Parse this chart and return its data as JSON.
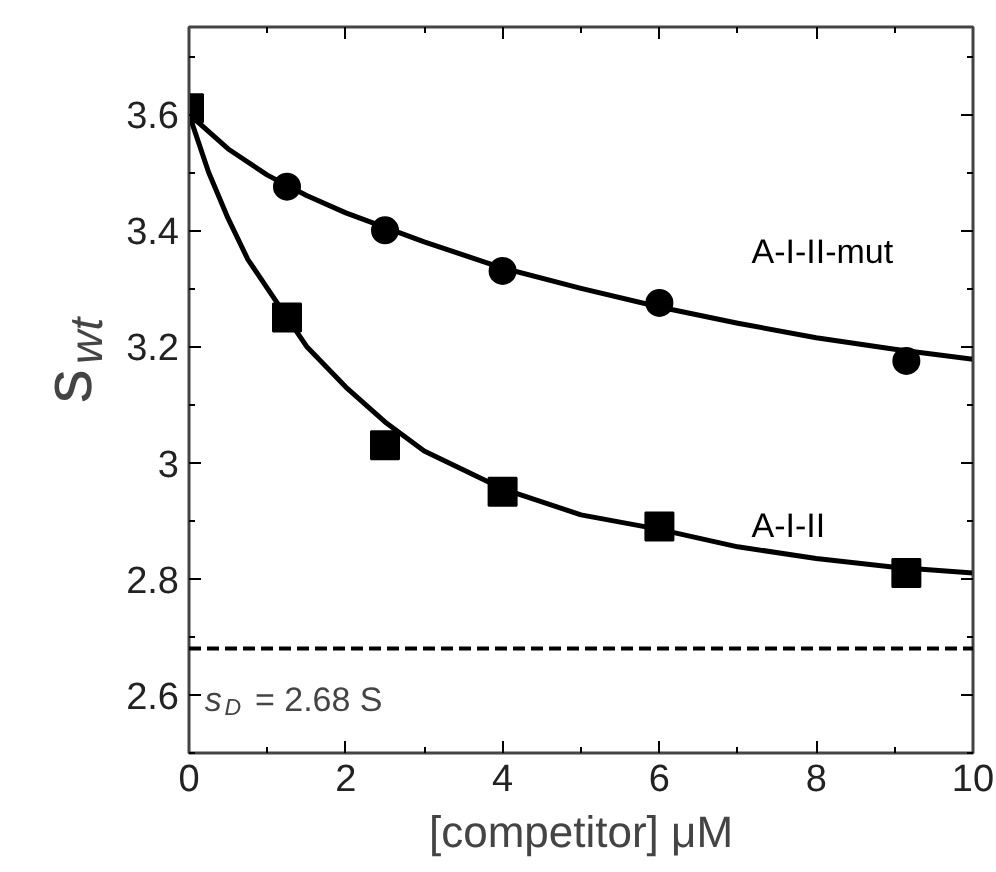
{
  "chart_data": {
    "type": "scatter",
    "xlabel": "[competitor] μM",
    "ylabel": "s$_{wt}$",
    "xlim": [
      0,
      10
    ],
    "ylim": [
      2.5,
      3.75
    ],
    "xticks": [
      0,
      2,
      4,
      6,
      8,
      10
    ],
    "yticks": [
      2.6,
      2.8,
      {
        "value": 3.0,
        "label": "3"
      },
      3.2,
      3.4,
      3.6
    ],
    "grid": false,
    "series": [
      {
        "name": "A-I-II-mut",
        "color": "#000000",
        "marker": "circle",
        "x": [
          1.25,
          2.5,
          4,
          6,
          9.15
        ],
        "values": [
          3.475,
          3.4,
          3.33,
          3.275,
          3.175
        ]
      },
      {
        "name": "A-I-II",
        "color": "#000000",
        "marker": "square",
        "x": [
          0,
          1.25,
          2.5,
          4,
          6,
          9.15
        ],
        "values": [
          3.61,
          3.25,
          3.03,
          2.95,
          2.89,
          2.81
        ]
      },
      {
        "type": "line",
        "color": "#000000",
        "marker": "none",
        "line_style": "solid",
        "x": [
          0,
          0.5,
          1,
          1.5,
          2,
          3,
          4,
          5,
          6,
          7,
          8,
          9,
          10
        ],
        "values": [
          3.6,
          3.54,
          3.495,
          3.46,
          3.43,
          3.38,
          3.335,
          3.3,
          3.268,
          3.24,
          3.215,
          3.195,
          3.178
        ]
      },
      {
        "type": "line",
        "color": "#000000",
        "marker": "none",
        "line_style": "solid",
        "x": [
          0,
          0.25,
          0.5,
          0.75,
          1,
          1.5,
          2,
          2.5,
          3,
          4,
          5,
          6,
          7,
          8,
          9,
          10
        ],
        "values": [
          3.6,
          3.5,
          3.42,
          3.35,
          3.3,
          3.2,
          3.13,
          3.07,
          3.02,
          2.955,
          2.91,
          2.885,
          2.855,
          2.835,
          2.82,
          2.81
        ]
      }
    ],
    "ref_lines": [
      {
        "axis": "y",
        "value": 2.68,
        "label": "s$_{D}$ = 2.68 S",
        "line_style": "dashed",
        "color": "#000000"
      }
    ]
  }
}
